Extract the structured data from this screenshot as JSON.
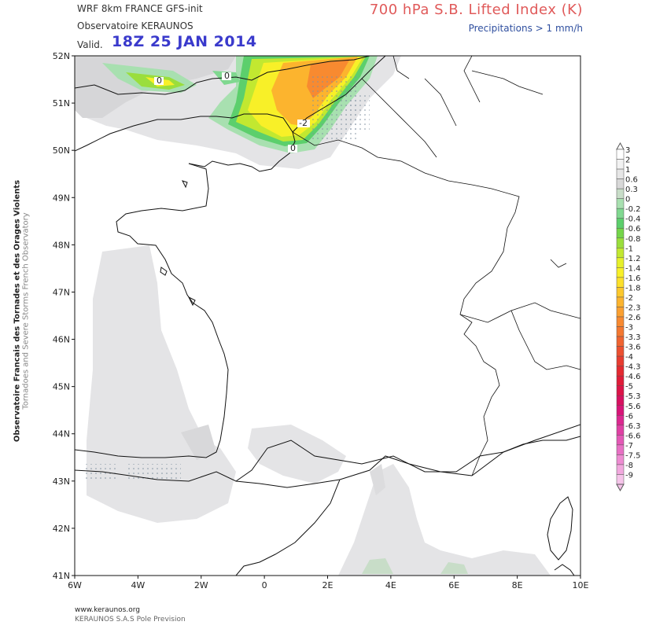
{
  "header": {
    "model": "WRF 8km FRANCE  GFS-init",
    "observatory": "Observatoire KERAUNOS",
    "valid_label": "Valid.",
    "valid_time": "18Z 25 JAN 2014",
    "title": "700 hPa S.B. Lifted Index (K)",
    "subtitle": "Precipitations > 1 mm/h"
  },
  "side": {
    "line1": "Observatoire Francais des Tornades et des Orages Violents",
    "line2": "Tornadoes and Severe Storms French Observatory"
  },
  "footer": {
    "url": "www.keraunos.org",
    "org": "KERAUNOS S.A.S Pole Prevision"
  },
  "map": {
    "lon_ticks": [
      "6W",
      "4W",
      "2W",
      "0",
      "2E",
      "4E",
      "6E",
      "8E",
      "10E"
    ],
    "lat_ticks": [
      "52N",
      "51N",
      "50N",
      "49N",
      "48N",
      "47N",
      "46N",
      "45N",
      "44N",
      "43N",
      "42N",
      "41N"
    ],
    "contour_labels": [
      "0",
      "0",
      "-2",
      "0"
    ]
  },
  "legend": {
    "levels": [
      {
        "label": "3",
        "color": "#ffffff"
      },
      {
        "label": "2",
        "color": "#f2f2f2"
      },
      {
        "label": "1",
        "color": "#e6e6e6"
      },
      {
        "label": "0.6",
        "color": "#d8d8d8"
      },
      {
        "label": "0.3",
        "color": "#c8ddc8"
      },
      {
        "label": "0",
        "color": "#a8e0b0"
      },
      {
        "label": "-0.2",
        "color": "#80d890"
      },
      {
        "label": "-0.4",
        "color": "#5ccf6c"
      },
      {
        "label": "-0.6",
        "color": "#74d54a"
      },
      {
        "label": "-0.8",
        "color": "#9ade3c"
      },
      {
        "label": "-1",
        "color": "#c2e830"
      },
      {
        "label": "-1.2",
        "color": "#e6f02a"
      },
      {
        "label": "-1.4",
        "color": "#f8f028"
      },
      {
        "label": "-1.6",
        "color": "#fce02a"
      },
      {
        "label": "-1.8",
        "color": "#fcc82c"
      },
      {
        "label": "-2",
        "color": "#fcb42e"
      },
      {
        "label": "-2.3",
        "color": "#fba030"
      },
      {
        "label": "-2.6",
        "color": "#f88a30"
      },
      {
        "label": "-3",
        "color": "#f47830"
      },
      {
        "label": "-3.3",
        "color": "#f06430"
      },
      {
        "label": "-3.6",
        "color": "#ec5030"
      },
      {
        "label": "-4",
        "color": "#e83c30"
      },
      {
        "label": "-4.3",
        "color": "#e42a30"
      },
      {
        "label": "-4.6",
        "color": "#e01c38"
      },
      {
        "label": "-5",
        "color": "#dc1448"
      },
      {
        "label": "-5.3",
        "color": "#d81060"
      },
      {
        "label": "-5.6",
        "color": "#d81478"
      },
      {
        "label": "-6",
        "color": "#dc2890"
      },
      {
        "label": "-6.3",
        "color": "#e040a4"
      },
      {
        "label": "-6.6",
        "color": "#e458b6"
      },
      {
        "label": "-7",
        "color": "#e870c4"
      },
      {
        "label": "-7.5",
        "color": "#ee8cd2"
      },
      {
        "label": "-8",
        "color": "#f2a8de"
      },
      {
        "label": "-9",
        "color": "#f6c4ea"
      }
    ]
  },
  "colors": {
    "land_boundary": "#111111",
    "shade_grey": "#e4e4e6",
    "shade_grey_dark": "#d6d6d8",
    "title_red": "#e05a5a",
    "valid_blue": "#3a3acc"
  }
}
